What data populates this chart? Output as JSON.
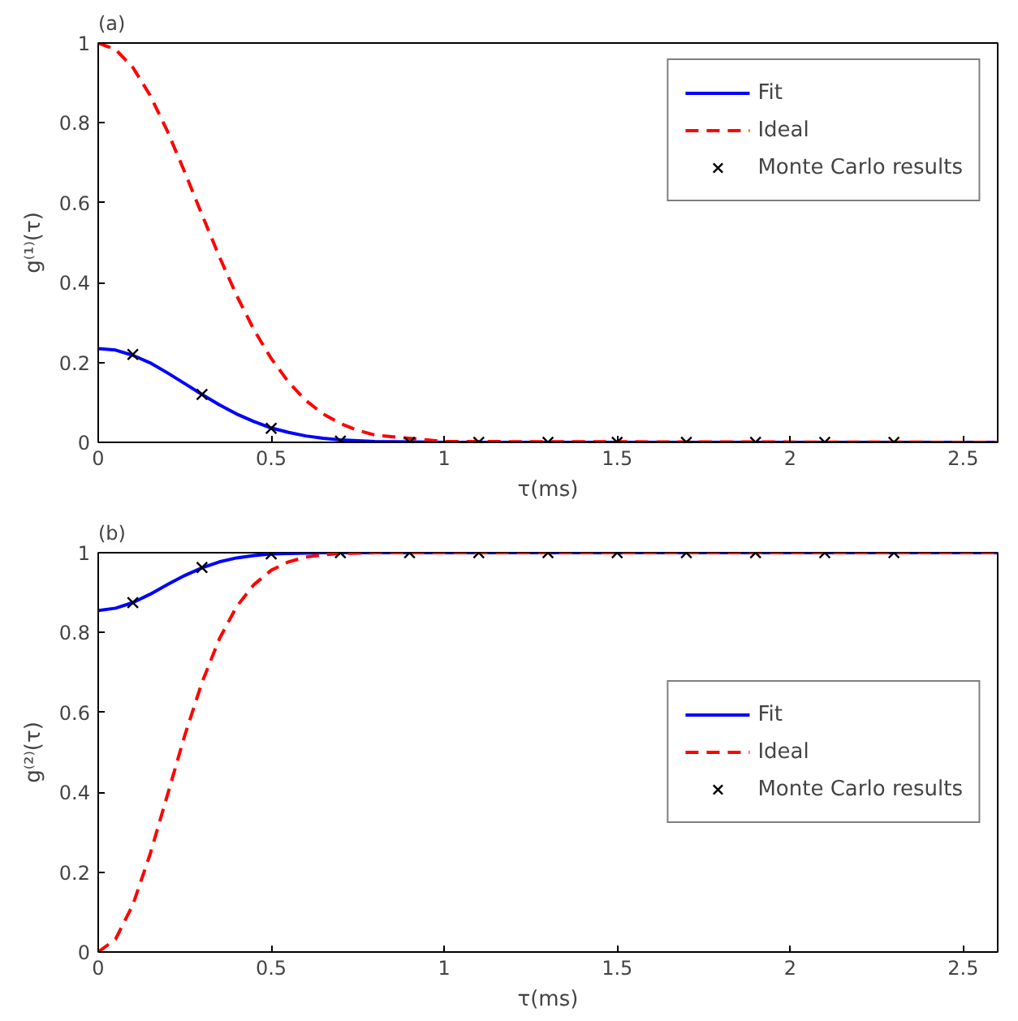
{
  "chart_data": [
    {
      "type": "line",
      "title": "(a)",
      "xlabel": "τ(ms)",
      "ylabel": "g⁽¹⁾(τ)",
      "xlim": [
        0,
        2.6
      ],
      "ylim": [
        0,
        1
      ],
      "xticks": [
        0,
        0.5,
        1,
        1.5,
        2,
        2.5
      ],
      "yticks": [
        0,
        0.2,
        0.4,
        0.6,
        0.8,
        1
      ],
      "legend": "top right",
      "grid": false,
      "series": [
        {
          "name": "Fit",
          "color": "#0000ff",
          "line_style": "solid",
          "x": [
            0,
            0.05,
            0.1,
            0.15,
            0.2,
            0.25,
            0.3,
            0.35,
            0.4,
            0.45,
            0.5,
            0.55,
            0.6,
            0.65,
            0.7,
            0.75,
            0.8,
            1,
            2.6
          ],
          "values": [
            0.235,
            0.231,
            0.218,
            0.199,
            0.174,
            0.147,
            0.12,
            0.094,
            0.071,
            0.052,
            0.036,
            0.025,
            0.016,
            0.01,
            0.006,
            0.004,
            0.002,
            0,
            0
          ]
        },
        {
          "name": "Ideal",
          "color": "#ff0000",
          "line_style": "dashed",
          "x": [
            0,
            0.05,
            0.1,
            0.15,
            0.2,
            0.25,
            0.3,
            0.35,
            0.4,
            0.45,
            0.5,
            0.55,
            0.6,
            0.65,
            0.7,
            0.75,
            0.8,
            1,
            2.6
          ],
          "values": [
            1,
            0.984,
            0.939,
            0.869,
            0.779,
            0.677,
            0.57,
            0.465,
            0.368,
            0.282,
            0.21,
            0.151,
            0.105,
            0.071,
            0.047,
            0.03,
            0.018,
            0.002,
            0
          ]
        },
        {
          "name": "Monte Carlo results",
          "type": "scatter",
          "marker": "cross",
          "color": "#000000",
          "x": [
            0.1,
            0.3,
            0.5,
            0.7,
            0.9,
            1.1,
            1.3,
            1.5,
            1.7,
            1.9,
            2.1,
            2.3
          ],
          "values": [
            0.22,
            0.12,
            0.035,
            0.003,
            0,
            0,
            0,
            0,
            0,
            0,
            0,
            0
          ]
        }
      ]
    },
    {
      "type": "line",
      "title": "(b)",
      "xlabel": "τ(ms)",
      "ylabel": "g⁽²⁾(τ)",
      "xlim": [
        0,
        2.6
      ],
      "ylim": [
        0,
        1
      ],
      "xticks": [
        0,
        0.5,
        1,
        1.5,
        2,
        2.5
      ],
      "yticks": [
        0,
        0.2,
        0.4,
        0.6,
        0.8,
        1
      ],
      "legend": "right",
      "grid": false,
      "series": [
        {
          "name": "Fit",
          "color": "#0000ff",
          "line_style": "solid",
          "x": [
            0,
            0.05,
            0.1,
            0.15,
            0.2,
            0.25,
            0.3,
            0.35,
            0.4,
            0.45,
            0.5,
            0.55,
            0.6,
            0.65,
            0.8,
            1,
            2.6
          ],
          "values": [
            0.855,
            0.861,
            0.875,
            0.896,
            0.92,
            0.943,
            0.962,
            0.977,
            0.987,
            0.993,
            0.997,
            0.998,
            0.999,
            1,
            1,
            1,
            1
          ]
        },
        {
          "name": "Ideal",
          "color": "#ff0000",
          "line_style": "dashed",
          "x": [
            0,
            0.05,
            0.1,
            0.15,
            0.2,
            0.25,
            0.3,
            0.35,
            0.4,
            0.45,
            0.5,
            0.55,
            0.6,
            0.65,
            0.7,
            0.75,
            0.8,
            1,
            2.6
          ],
          "values": [
            0,
            0.032,
            0.118,
            0.245,
            0.393,
            0.542,
            0.675,
            0.784,
            0.865,
            0.92,
            0.956,
            0.977,
            0.989,
            0.995,
            0.998,
            0.999,
            1,
            1,
            1
          ]
        },
        {
          "name": "Monte Carlo results",
          "type": "scatter",
          "marker": "cross",
          "color": "#000000",
          "x": [
            0.1,
            0.3,
            0.5,
            0.7,
            0.9,
            1.1,
            1.3,
            1.5,
            1.7,
            1.9,
            2.1,
            2.3
          ],
          "values": [
            0.875,
            0.963,
            0.997,
            1,
            1,
            1,
            1,
            1,
            1,
            1,
            1,
            1
          ]
        }
      ]
    }
  ]
}
